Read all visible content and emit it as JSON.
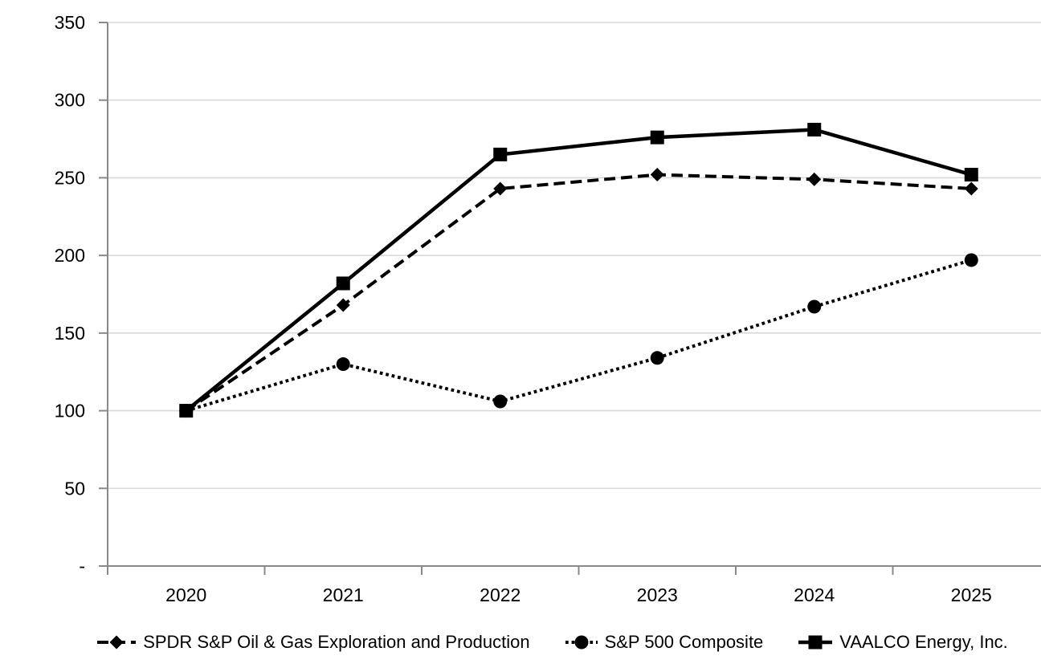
{
  "chart_data": {
    "type": "line",
    "categories": [
      "2020",
      "2021",
      "2022",
      "2023",
      "2024",
      "2025"
    ],
    "series": [
      {
        "name": "SPDR S&P Oil & Gas Exploration and Production",
        "values": [
          100,
          168,
          243,
          252,
          249,
          243
        ],
        "marker": "diamond",
        "line_style": "dashed",
        "color": "#000000"
      },
      {
        "name": "S&P 500 Composite",
        "values": [
          100,
          130,
          106,
          134,
          167,
          197
        ],
        "marker": "circle",
        "line_style": "dotted",
        "color": "#000000"
      },
      {
        "name": "VAALCO Energy, Inc.",
        "values": [
          100,
          182,
          265,
          276,
          281,
          252
        ],
        "marker": "square",
        "line_style": "solid",
        "color": "#000000"
      }
    ],
    "y_ticks": [
      {
        "value": 0,
        "label": "-"
      },
      {
        "value": 50,
        "label": "50"
      },
      {
        "value": 100,
        "label": "100"
      },
      {
        "value": 150,
        "label": "150"
      },
      {
        "value": 200,
        "label": "200"
      },
      {
        "value": 250,
        "label": "250"
      },
      {
        "value": 300,
        "label": "300"
      },
      {
        "value": 350,
        "label": "350"
      }
    ],
    "ylim": [
      0,
      350
    ],
    "grid": "horizontal",
    "legend_position": "bottom",
    "axis_color": "#898989",
    "gridline_color": "#D9D9D9",
    "background_color": "#FFFFFF"
  }
}
